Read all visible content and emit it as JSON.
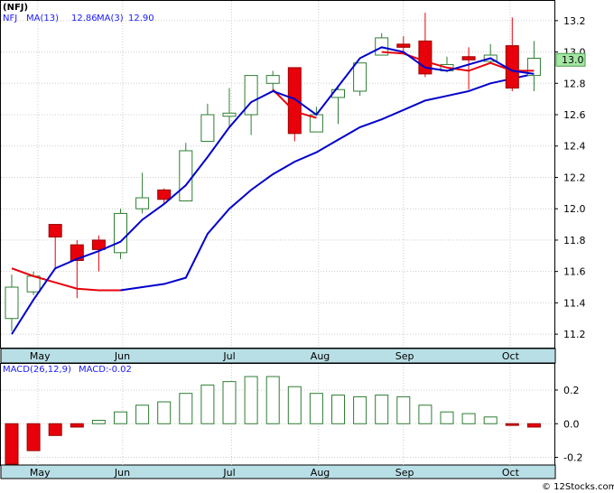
{
  "chart_data": [
    {
      "type": "candlestick",
      "title": "(NFJ)",
      "legend": {
        "ticker": "NFJ",
        "ma13_label": "MA(13)",
        "ma13_value": "12.86",
        "ma3_label": "MA(3)",
        "ma3_value": "12.90"
      },
      "ylim": [
        11.12,
        13.32
      ],
      "yticks": [
        11.2,
        11.4,
        11.6,
        11.8,
        12.0,
        12.2,
        12.4,
        12.6,
        12.8,
        13.0,
        13.2
      ],
      "ytick_labels": [
        "11.2",
        "11.4",
        "11.6",
        "11.8",
        "12.0",
        "12.2",
        "12.4",
        "12.6",
        "12.8",
        "13.0",
        "13.2"
      ],
      "last_price_label": "13.0",
      "last_price_value": 12.95,
      "xtick_labels": [
        "May",
        "Jun",
        "Jul",
        "Aug",
        "Sep",
        "Oct"
      ],
      "xtick_index": [
        1.2,
        5.1,
        10.1,
        14.1,
        18.0,
        22.9
      ],
      "candles": [
        {
          "o": 11.3,
          "h": 11.58,
          "l": 11.22,
          "c": 11.5
        },
        {
          "o": 11.47,
          "h": 11.6,
          "l": 11.45,
          "c": 11.57
        },
        {
          "o": 11.9,
          "h": 11.9,
          "l": 11.62,
          "c": 11.82
        },
        {
          "o": 11.77,
          "h": 11.8,
          "l": 11.43,
          "c": 11.67
        },
        {
          "o": 11.8,
          "h": 11.83,
          "l": 11.6,
          "c": 11.74
        },
        {
          "o": 11.72,
          "h": 12.0,
          "l": 11.68,
          "c": 11.97
        },
        {
          "o": 12.0,
          "h": 12.23,
          "l": 11.97,
          "c": 12.07
        },
        {
          "o": 12.12,
          "h": 12.13,
          "l": 12.03,
          "c": 12.06
        },
        {
          "o": 12.05,
          "h": 12.42,
          "l": 12.05,
          "c": 12.37
        },
        {
          "o": 12.43,
          "h": 12.67,
          "l": 12.43,
          "c": 12.6
        },
        {
          "o": 12.59,
          "h": 12.77,
          "l": 12.52,
          "c": 12.61
        },
        {
          "o": 12.6,
          "h": 12.85,
          "l": 12.47,
          "c": 12.85
        },
        {
          "o": 12.8,
          "h": 12.88,
          "l": 12.75,
          "c": 12.85
        },
        {
          "o": 12.9,
          "h": 12.9,
          "l": 12.43,
          "c": 12.48
        },
        {
          "o": 12.49,
          "h": 12.65,
          "l": 12.49,
          "c": 12.6
        },
        {
          "o": 12.71,
          "h": 12.78,
          "l": 12.54,
          "c": 12.76
        },
        {
          "o": 12.75,
          "h": 12.93,
          "l": 12.72,
          "c": 12.93
        },
        {
          "o": 12.98,
          "h": 13.12,
          "l": 12.98,
          "c": 13.09
        },
        {
          "o": 13.05,
          "h": 13.1,
          "l": 13.0,
          "c": 13.03
        },
        {
          "o": 13.07,
          "h": 13.25,
          "l": 12.84,
          "c": 12.86
        },
        {
          "o": 12.88,
          "h": 12.97,
          "l": 12.87,
          "c": 12.92
        },
        {
          "o": 12.97,
          "h": 13.03,
          "l": 12.76,
          "c": 12.95
        },
        {
          "o": 12.94,
          "h": 13.05,
          "l": 12.93,
          "c": 12.98
        },
        {
          "o": 13.04,
          "h": 13.22,
          "l": 12.75,
          "c": 12.77
        },
        {
          "o": 12.85,
          "h": 13.07,
          "l": 12.75,
          "c": 12.96
        }
      ],
      "ma3": [
        11.62,
        11.57,
        11.53,
        11.49,
        11.48,
        11.48,
        null,
        null,
        null,
        null,
        null,
        null,
        12.76,
        12.62,
        12.58,
        null,
        null,
        13.0,
        12.99,
        12.94,
        12.9,
        12.88,
        12.93,
        12.88,
        12.88
      ],
      "ma13": [
        11.2,
        11.42,
        11.62,
        11.68,
        11.73,
        11.79,
        11.93,
        12.03,
        12.15,
        12.33,
        12.52,
        12.68,
        12.75,
        12.7,
        12.6,
        12.78,
        12.96,
        13.03,
        13.0,
        12.9,
        12.88,
        12.92,
        12.96,
        12.88,
        12.86
      ],
      "ma13_slow": [
        null,
        null,
        null,
        null,
        null,
        11.48,
        11.5,
        11.52,
        11.56,
        11.84,
        12.0,
        12.12,
        12.22,
        12.3,
        12.36,
        12.44,
        12.52,
        12.57,
        12.63,
        12.69,
        12.72,
        12.75,
        12.8,
        12.83,
        12.86
      ]
    },
    {
      "type": "bar",
      "title": "MACD",
      "legend": {
        "params_label": "MACD(26,12,9)",
        "value_label": "MACD:",
        "value": "-0.02"
      },
      "ylim": [
        -0.24,
        0.35
      ],
      "yticks": [
        -0.2,
        0.0,
        0.2
      ],
      "ytick_labels": [
        "-0.2",
        "0.0",
        "0.2"
      ],
      "xtick_labels": [
        "May",
        "Jun",
        "Jul",
        "Aug",
        "Sep",
        "Oct"
      ],
      "values": [
        -0.24,
        -0.16,
        -0.07,
        -0.02,
        0.02,
        0.07,
        0.11,
        0.13,
        0.18,
        0.23,
        0.25,
        0.28,
        0.28,
        0.22,
        0.18,
        0.17,
        0.16,
        0.17,
        0.16,
        0.11,
        0.07,
        0.06,
        0.04,
        -0.01,
        -0.02
      ]
    }
  ],
  "colors": {
    "up": "#2e7d32",
    "down": "#e8000b",
    "ma_fast": "#e8000b",
    "ma_slow": "#0000cc",
    "axis_bg": "#b9dfe6",
    "grid": "#cccccc"
  },
  "footer": "© 12Stocks.com"
}
